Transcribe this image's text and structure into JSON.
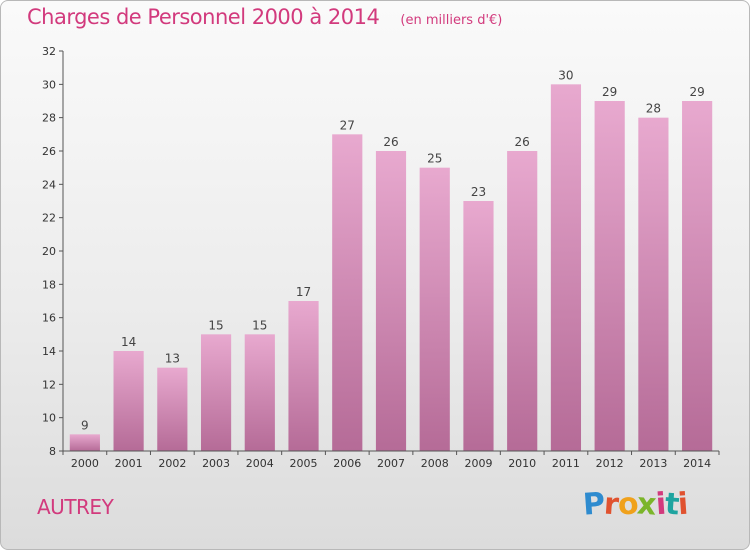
{
  "header": {
    "title": "Charges de Personnel 2000 à 2014",
    "unit": "(en milliers d'€)"
  },
  "footer": {
    "commune": "AUTREY",
    "logo": "Proxiti"
  },
  "colors": {
    "title": "#d23a7d",
    "bar_top": "#e8a9cf",
    "bar_bottom": "#b56b97",
    "axis": "#555555"
  },
  "chart_data": {
    "type": "bar",
    "categories": [
      "2000",
      "2001",
      "2002",
      "2003",
      "2004",
      "2005",
      "2006",
      "2007",
      "2008",
      "2009",
      "2010",
      "2011",
      "2012",
      "2013",
      "2014"
    ],
    "values": [
      9,
      14,
      13,
      15,
      15,
      17,
      27,
      26,
      25,
      23,
      26,
      30,
      29,
      28,
      29
    ],
    "ylim": [
      8,
      32
    ],
    "yticks": [
      8,
      10,
      12,
      14,
      16,
      18,
      20,
      22,
      24,
      26,
      28,
      30,
      32
    ],
    "grid": false,
    "legend": "none"
  }
}
